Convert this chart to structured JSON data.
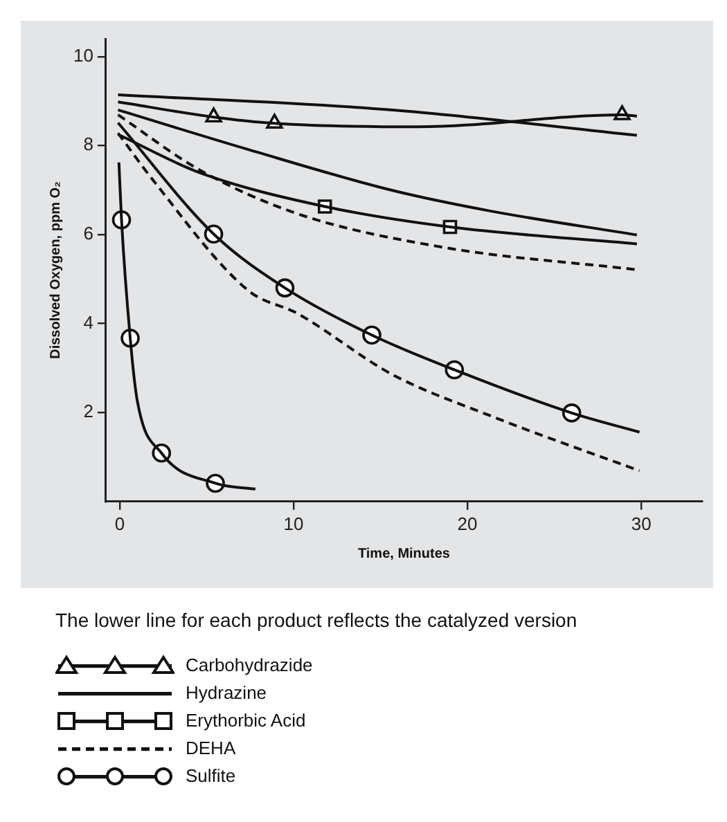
{
  "chart_data": {
    "type": "line",
    "xlabel": "Time, Minutes",
    "ylabel": "Dissolved Oxygen, ppm O₂",
    "xlim": [
      -0.8,
      33.5
    ],
    "ylim": [
      0,
      10.4
    ],
    "xticks": [
      0,
      10,
      20,
      30
    ],
    "yticks": [
      2,
      4,
      6,
      8,
      10
    ],
    "grid": false,
    "legend": "bottom",
    "annotations": [
      "The lower line for each product reflects the catalyzed version"
    ],
    "series": [
      {
        "name": "Carbohydrazide",
        "color": "#111111",
        "line_style": "solid",
        "marker": "none",
        "x": [
          -0.1,
          5.4,
          8.9,
          17.1,
          28.9,
          29.75
        ],
        "values": [
          8.98,
          8.64,
          8.5,
          8.42,
          8.69,
          8.66
        ]
      },
      {
        "type": "scatter",
        "color": "#111111",
        "marker": "triangle",
        "x": [
          5.4,
          8.9,
          28.9
        ],
        "values": [
          8.64,
          8.5,
          8.69
        ]
      },
      {
        "name": "Hydrazine",
        "color": "#111111",
        "line_style": "solid",
        "marker": "none",
        "x": [
          -0.1,
          15.7,
          29.75
        ],
        "values": [
          9.14,
          8.8,
          8.23
        ]
      },
      {
        "color": "#111111",
        "line_style": "solid",
        "marker": "none",
        "x": [
          -0.1,
          7.4,
          15.7,
          21.3,
          29.75
        ],
        "values": [
          8.8,
          7.91,
          6.99,
          6.53,
          5.99
        ]
      },
      {
        "name": "Erythorbic Acid",
        "color": "#111111",
        "line_style": "solid",
        "marker": "none",
        "x": [
          -0.1,
          4.6,
          11.8,
          19,
          29.75
        ],
        "values": [
          8.25,
          7.39,
          6.63,
          6.17,
          5.79
        ]
      },
      {
        "type": "scatter",
        "color": "#111111",
        "marker": "square",
        "x": [
          11.8,
          19
        ],
        "values": [
          6.63,
          6.17
        ]
      },
      {
        "name": "DEHA",
        "color": "#111111",
        "line_style": "dashed",
        "marker": "none",
        "x": [
          -0.1,
          4.6,
          10.2,
          18.5,
          29.75
        ],
        "values": [
          8.69,
          7.45,
          6.47,
          5.72,
          5.21
        ]
      },
      {
        "color": "#111111",
        "line_style": "dashed",
        "marker": "none",
        "x": [
          -0.1,
          1.8,
          7.4,
          10.2,
          15.7,
          21.3,
          29.9
        ],
        "values": [
          8.28,
          7.28,
          4.74,
          4.23,
          2.85,
          1.93,
          0.69
        ]
      },
      {
        "name": "Sulfite",
        "color": "#111111",
        "line_style": "solid",
        "marker": "none",
        "x": [
          -0.1,
          5.4,
          9.5,
          14.5,
          19.25,
          26,
          29.9
        ],
        "values": [
          8.51,
          6.01,
          4.8,
          3.74,
          2.96,
          1.99,
          1.56
        ]
      },
      {
        "type": "scatter",
        "color": "#111111",
        "marker": "circle",
        "x": [
          5.4,
          9.5,
          14.5,
          19.25,
          26
        ],
        "values": [
          6.01,
          4.8,
          3.74,
          2.96,
          1.99
        ]
      },
      {
        "color": "#111111",
        "line_style": "solid",
        "marker": "none",
        "x": [
          -0.05,
          0.1,
          0.6,
          1.0,
          2.4,
          5.5,
          7.8
        ],
        "values": [
          7.62,
          6.33,
          3.67,
          2.28,
          1.09,
          0.41,
          0.28
        ]
      },
      {
        "type": "scatter",
        "color": "#111111",
        "marker": "circle",
        "x": [
          0.1,
          0.6,
          2.4,
          5.5
        ],
        "values": [
          6.33,
          3.67,
          1.09,
          0.41
        ]
      }
    ]
  }
}
